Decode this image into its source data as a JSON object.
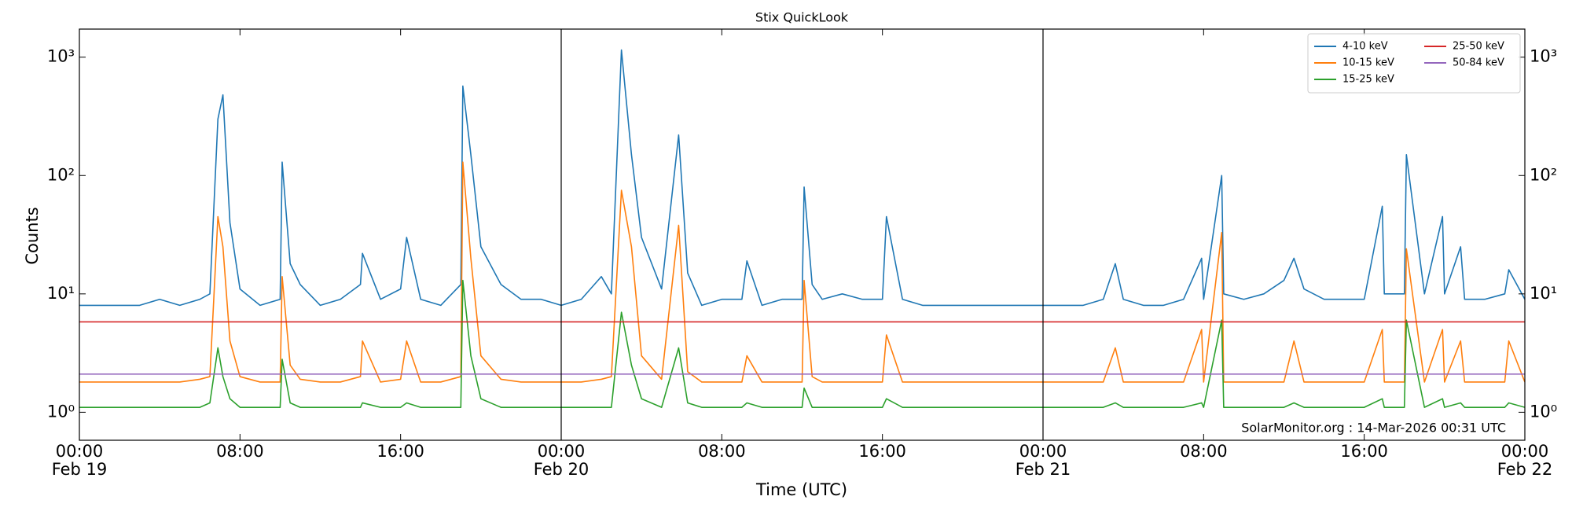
{
  "chart_data": {
    "type": "line",
    "title": "Stix QuickLook",
    "xlabel": "Time (UTC)",
    "ylabel": "Counts",
    "annotation": "SolarMonitor.org : 14-Mar-2026 00:31 UTC",
    "log_y": true,
    "legend": "upper right",
    "legend_ncol": 2,
    "vlines": [
      "Feb 20 00:00",
      "Feb 21 00:00"
    ],
    "xlim": [
      "Feb 19 00:00",
      "Feb 22 00:00"
    ],
    "xticks": [
      {
        "value": "Feb 19 00:00",
        "label": "00:00"
      },
      {
        "value": "Feb 19 08:00",
        "label": "08:00"
      },
      {
        "value": "Feb 19 16:00",
        "label": "16:00"
      },
      {
        "value": "Feb 20 00:00",
        "label": "00:00"
      },
      {
        "value": "Feb 20 08:00",
        "label": "08:00"
      },
      {
        "value": "Feb 20 16:00",
        "label": "16:00"
      },
      {
        "value": "Feb 21 00:00",
        "label": "00:00"
      },
      {
        "value": "Feb 21 08:00",
        "label": "08:00"
      },
      {
        "value": "Feb 21 16:00",
        "label": "16:00"
      },
      {
        "value": "Feb 22 00:00",
        "label": "00:00"
      }
    ],
    "x_date_labels": [
      {
        "value": "Feb 19 00:00",
        "label": "Feb 19"
      },
      {
        "value": "Feb 20 00:00",
        "label": "Feb 20"
      },
      {
        "value": "Feb 21 00:00",
        "label": "Feb 21"
      },
      {
        "value": "Feb 22 00:00",
        "label": "Feb 22"
      }
    ],
    "ylim": [
      0.58,
      1727
    ],
    "yticks": [
      {
        "value": 1,
        "label": "10⁰"
      },
      {
        "value": 10,
        "label": "10¹"
      },
      {
        "value": 100,
        "label": "10²"
      },
      {
        "value": 1000,
        "label": "10³"
      }
    ],
    "x": [
      "Feb 19 00:00",
      "Feb 19 01:00",
      "Feb 19 02:00",
      "Feb 19 03:00",
      "Feb 19 04:00",
      "Feb 19 05:00",
      "Feb 19 06:00",
      "Feb 19 06:30",
      "Feb 19 06:54",
      "Feb 19 07:09",
      "Feb 19 07:30",
      "Feb 19 08:00",
      "Feb 19 09:00",
      "Feb 19 10:00",
      "Feb 19 10:06",
      "Feb 19 10:30",
      "Feb 19 11:00",
      "Feb 19 12:00",
      "Feb 19 13:00",
      "Feb 19 14:00",
      "Feb 19 14:06",
      "Feb 19 15:00",
      "Feb 19 16:00",
      "Feb 19 16:18",
      "Feb 19 17:00",
      "Feb 19 18:00",
      "Feb 19 19:00",
      "Feb 19 19:06",
      "Feb 19 19:30",
      "Feb 19 20:00",
      "Feb 19 21:00",
      "Feb 19 22:00",
      "Feb 19 23:00",
      "Feb 20 00:00",
      "Feb 20 01:00",
      "Feb 20 02:00",
      "Feb 20 02:30",
      "Feb 20 03:00",
      "Feb 20 03:30",
      "Feb 20 04:00",
      "Feb 20 05:00",
      "Feb 20 05:51",
      "Feb 20 06:18",
      "Feb 20 07:00",
      "Feb 20 08:00",
      "Feb 20 09:00",
      "Feb 20 09:15",
      "Feb 20 10:00",
      "Feb 20 11:00",
      "Feb 20 12:00",
      "Feb 20 12:06",
      "Feb 20 12:30",
      "Feb 20 13:00",
      "Feb 20 14:00",
      "Feb 20 15:00",
      "Feb 20 16:00",
      "Feb 20 16:12",
      "Feb 20 17:00",
      "Feb 20 18:00",
      "Feb 20 19:00",
      "Feb 20 20:00",
      "Feb 20 21:00",
      "Feb 20 22:00",
      "Feb 20 23:00",
      "Feb 21 00:00",
      "Feb 21 01:00",
      "Feb 21 02:00",
      "Feb 21 03:00",
      "Feb 21 03:36",
      "Feb 21 04:00",
      "Feb 21 05:00",
      "Feb 21 06:00",
      "Feb 21 07:00",
      "Feb 21 07:54",
      "Feb 21 08:00",
      "Feb 21 08:54",
      "Feb 21 09:00",
      "Feb 21 10:00",
      "Feb 21 11:00",
      "Feb 21 12:00",
      "Feb 21 12:30",
      "Feb 21 13:00",
      "Feb 21 14:00",
      "Feb 21 15:00",
      "Feb 21 16:00",
      "Feb 21 16:54",
      "Feb 21 17:00",
      "Feb 21 18:00",
      "Feb 21 18:06",
      "Feb 21 19:00",
      "Feb 21 19:54",
      "Feb 21 20:00",
      "Feb 21 20:48",
      "Feb 21 21:00",
      "Feb 21 22:00",
      "Feb 21 23:00",
      "Feb 21 23:12",
      "Feb 22 00:00"
    ],
    "series": [
      {
        "name": "4-10 keV",
        "color": "#1f77b4",
        "values": [
          8,
          8,
          8,
          8,
          9,
          8,
          9,
          10,
          300,
          480,
          40,
          11,
          8,
          9,
          130,
          18,
          12,
          8,
          9,
          12,
          22,
          9,
          11,
          30,
          9,
          8,
          12,
          570,
          150,
          25,
          12,
          9,
          9,
          8,
          9,
          14,
          10,
          1150,
          150,
          30,
          11,
          220,
          15,
          8,
          9,
          9,
          19,
          8,
          9,
          9,
          80,
          12,
          9,
          10,
          9,
          9,
          45,
          9,
          8,
          8,
          8,
          8,
          8,
          8,
          8,
          8,
          8,
          9,
          18,
          9,
          8,
          8,
          9,
          20,
          9,
          100,
          10,
          9,
          10,
          13,
          20,
          11,
          9,
          9,
          9,
          55,
          10,
          10,
          150,
          10,
          45,
          10,
          25,
          9,
          9,
          10,
          16,
          9
        ]
      },
      {
        "name": "10-15 keV",
        "color": "#ff7f0e",
        "values": [
          1.8,
          1.8,
          1.8,
          1.8,
          1.8,
          1.8,
          1.9,
          2,
          45,
          25,
          4,
          2,
          1.8,
          1.8,
          14,
          2.5,
          1.9,
          1.8,
          1.8,
          2,
          4,
          1.8,
          1.9,
          4,
          1.8,
          1.8,
          2,
          130,
          20,
          3,
          1.9,
          1.8,
          1.8,
          1.8,
          1.8,
          1.9,
          2,
          75,
          25,
          3,
          1.9,
          38,
          2.2,
          1.8,
          1.8,
          1.8,
          3,
          1.8,
          1.8,
          1.8,
          13,
          2,
          1.8,
          1.8,
          1.8,
          1.8,
          4.5,
          1.8,
          1.8,
          1.8,
          1.8,
          1.8,
          1.8,
          1.8,
          1.8,
          1.8,
          1.8,
          1.8,
          3.5,
          1.8,
          1.8,
          1.8,
          1.8,
          5,
          1.8,
          33,
          1.8,
          1.8,
          1.8,
          1.8,
          4,
          1.8,
          1.8,
          1.8,
          1.8,
          5,
          1.8,
          1.8,
          24,
          1.8,
          5,
          1.8,
          4,
          1.8,
          1.8,
          1.8,
          4,
          1.8
        ]
      },
      {
        "name": "15-25 keV",
        "color": "#2ca02c",
        "values": [
          1.1,
          1.1,
          1.1,
          1.1,
          1.1,
          1.1,
          1.1,
          1.2,
          3.5,
          2,
          1.3,
          1.1,
          1.1,
          1.1,
          2.8,
          1.2,
          1.1,
          1.1,
          1.1,
          1.1,
          1.2,
          1.1,
          1.1,
          1.2,
          1.1,
          1.1,
          1.1,
          13,
          3,
          1.3,
          1.1,
          1.1,
          1.1,
          1.1,
          1.1,
          1.1,
          1.1,
          7,
          2.5,
          1.3,
          1.1,
          3.5,
          1.2,
          1.1,
          1.1,
          1.1,
          1.2,
          1.1,
          1.1,
          1.1,
          1.6,
          1.1,
          1.1,
          1.1,
          1.1,
          1.1,
          1.3,
          1.1,
          1.1,
          1.1,
          1.1,
          1.1,
          1.1,
          1.1,
          1.1,
          1.1,
          1.1,
          1.1,
          1.2,
          1.1,
          1.1,
          1.1,
          1.1,
          1.2,
          1.1,
          6,
          1.1,
          1.1,
          1.1,
          1.1,
          1.2,
          1.1,
          1.1,
          1.1,
          1.1,
          1.3,
          1.1,
          1.1,
          6,
          1.1,
          1.3,
          1.1,
          1.2,
          1.1,
          1.1,
          1.1,
          1.2,
          1.1
        ]
      },
      {
        "name": "25-50 keV",
        "color": "#d62728",
        "values": [
          5.8,
          5.8,
          5.8,
          5.8,
          5.8,
          5.8,
          5.8,
          5.8,
          5.8,
          5.8,
          5.8,
          5.8,
          5.8,
          5.8,
          5.8,
          5.8,
          5.8,
          5.8,
          5.8,
          5.8,
          5.8,
          5.8,
          5.8,
          5.8,
          5.8,
          5.8,
          5.8,
          5.8,
          5.8,
          5.8,
          5.8,
          5.8,
          5.8,
          5.8,
          5.8,
          5.8,
          5.8,
          5.8,
          5.8,
          5.8,
          5.8,
          5.8,
          5.8,
          5.8,
          5.8,
          5.8,
          5.8,
          5.8,
          5.8,
          5.8,
          5.8,
          5.8,
          5.8,
          5.8,
          5.8,
          5.8,
          5.8,
          5.8,
          5.8,
          5.8,
          5.8,
          5.8,
          5.8,
          5.8,
          5.8,
          5.8,
          5.8,
          5.8,
          5.8,
          5.8,
          5.8,
          5.8,
          5.8,
          5.8,
          5.8,
          5.8,
          5.8,
          5.8,
          5.8,
          5.8,
          5.8,
          5.8,
          5.8,
          5.8,
          5.8,
          5.8,
          5.8,
          5.8,
          5.8,
          5.8,
          5.8,
          5.8,
          5.8,
          5.8,
          5.8,
          5.8,
          5.8,
          5.8
        ]
      },
      {
        "name": "50-84 keV",
        "color": "#9467bd",
        "values": [
          2.1,
          2.1,
          2.1,
          2.1,
          2.1,
          2.1,
          2.1,
          2.1,
          2.1,
          2.1,
          2.1,
          2.1,
          2.1,
          2.1,
          2.1,
          2.1,
          2.1,
          2.1,
          2.1,
          2.1,
          2.1,
          2.1,
          2.1,
          2.1,
          2.1,
          2.1,
          2.1,
          2.1,
          2.1,
          2.1,
          2.1,
          2.1,
          2.1,
          2.1,
          2.1,
          2.1,
          2.1,
          2.1,
          2.1,
          2.1,
          2.1,
          2.1,
          2.1,
          2.1,
          2.1,
          2.1,
          2.1,
          2.1,
          2.1,
          2.1,
          2.1,
          2.1,
          2.1,
          2.1,
          2.1,
          2.1,
          2.1,
          2.1,
          2.1,
          2.1,
          2.1,
          2.1,
          2.1,
          2.1,
          2.1,
          2.1,
          2.1,
          2.1,
          2.1,
          2.1,
          2.1,
          2.1,
          2.1,
          2.1,
          2.1,
          2.1,
          2.1,
          2.1,
          2.1,
          2.1,
          2.1,
          2.1,
          2.1,
          2.1,
          2.1,
          2.1,
          2.1,
          2.1,
          2.1,
          2.1,
          2.1,
          2.1,
          2.1,
          2.1,
          2.1,
          2.1,
          2.1,
          2.1
        ]
      }
    ]
  }
}
